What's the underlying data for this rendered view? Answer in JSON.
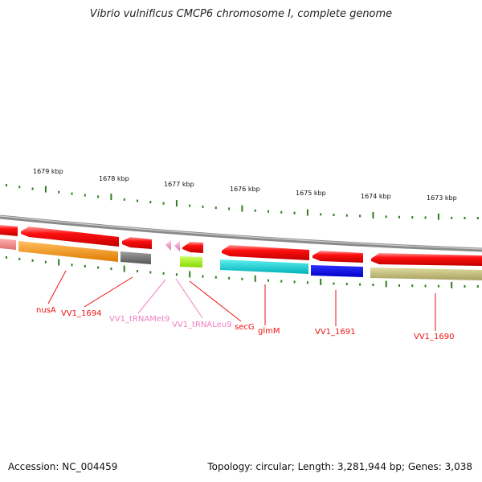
{
  "title": "Vibrio vulnificus CMCP6 chromosome I, complete genome",
  "footer": {
    "accession": "Accession: NC_004459",
    "stats": "Topology: circular; Length: 3,281,944 bp; Genes: 3,038"
  },
  "scale_labels": [
    "1679 kbp",
    "1678 kbp",
    "1677 kbp",
    "1676 kbp",
    "1675 kbp",
    "1674 kbp",
    "1673 kbp"
  ],
  "genes": [
    {
      "label": "nusA",
      "color": "#ff0000"
    },
    {
      "label": "VV1_1694",
      "color": "#ff0000"
    },
    {
      "label": "VV1_tRNAMet9",
      "color": "#f080c0"
    },
    {
      "label": "VV1_tRNALeu9",
      "color": "#f080c0"
    },
    {
      "label": "secG",
      "color": "#ff0000"
    },
    {
      "label": "glmM",
      "color": "#ff0000"
    },
    {
      "label": "VV1_1691",
      "color": "#ff0000"
    },
    {
      "label": "VV1_1690",
      "color": "#ff0000"
    }
  ],
  "colors": {
    "backbone": "#888888",
    "cds": "#ff0000",
    "trna": "#f4a0c8",
    "tick": "#2e7d1e",
    "label_red": "#ee1111",
    "label_pink": "#f080c0"
  }
}
